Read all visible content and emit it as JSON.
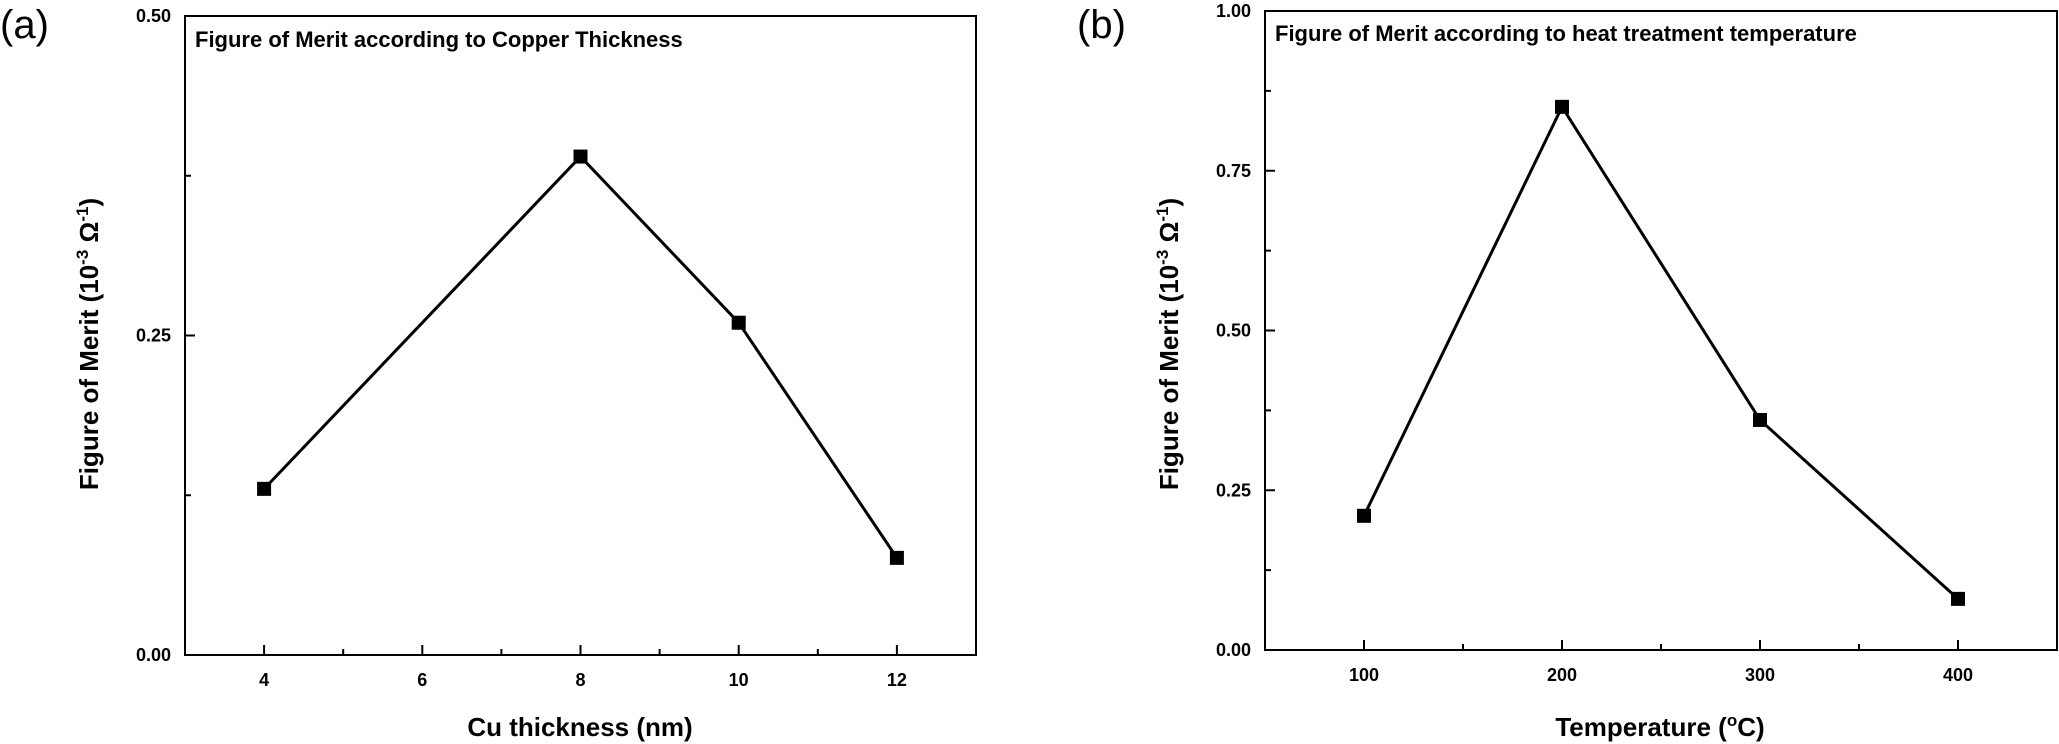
{
  "chart_data": [
    {
      "type": "line",
      "panel_label": "(a)",
      "title": "Figure of Merit according to Copper Thickness",
      "xlabel": "Cu thickness (nm)",
      "ylabel_main": "Figure of Merit (10",
      "ylabel_exp1": "-3",
      "ylabel_mid": " Ω",
      "ylabel_exp2": "-1",
      "ylabel_end": ")",
      "xlim": [
        3,
        13
      ],
      "ylim": [
        0,
        0.5
      ],
      "x_major_ticks": [
        4,
        6,
        8,
        10,
        12
      ],
      "x_minor_ticks": [
        5,
        7,
        9,
        11
      ],
      "x_tick_labels": [
        "4",
        "6",
        "8",
        "10",
        "12"
      ],
      "y_major_ticks": [
        0,
        0.25,
        0.5
      ],
      "y_minor_ticks": [
        0.125,
        0.375
      ],
      "y_tick_labels": [
        "0.00",
        "0.25",
        "0.50"
      ],
      "grid": false,
      "legend": "none",
      "marker": "square",
      "color": "#000000",
      "x": [
        4,
        8,
        10,
        12
      ],
      "y": [
        0.13,
        0.39,
        0.26,
        0.076
      ]
    },
    {
      "type": "line",
      "panel_label": "(b)",
      "title": "Figure of Merit according to heat treatment temperature",
      "xlabel_main": "Temperature (",
      "xlabel_sup": "o",
      "xlabel_end": "C)",
      "ylabel_main": "Figure of Merit (10",
      "ylabel_exp1": "-3",
      "ylabel_mid": " Ω",
      "ylabel_exp2": "-1",
      "ylabel_end": ")",
      "xlim": [
        50,
        450
      ],
      "ylim": [
        0,
        1.0
      ],
      "x_major_ticks": [
        100,
        200,
        300,
        400
      ],
      "x_minor_ticks": [
        150,
        250,
        350
      ],
      "x_tick_labels": [
        "100",
        "200",
        "300",
        "400"
      ],
      "y_major_ticks": [
        0,
        0.25,
        0.5,
        0.75,
        1.0
      ],
      "y_minor_ticks": [
        0.125,
        0.375,
        0.625,
        0.875
      ],
      "y_tick_labels": [
        "0.00",
        "0.25",
        "0.50",
        "0.75",
        "1.00"
      ],
      "grid": false,
      "legend": "none",
      "marker": "square",
      "color": "#000000",
      "x": [
        100,
        200,
        300,
        400
      ],
      "y": [
        0.21,
        0.85,
        0.36,
        0.08
      ]
    }
  ]
}
